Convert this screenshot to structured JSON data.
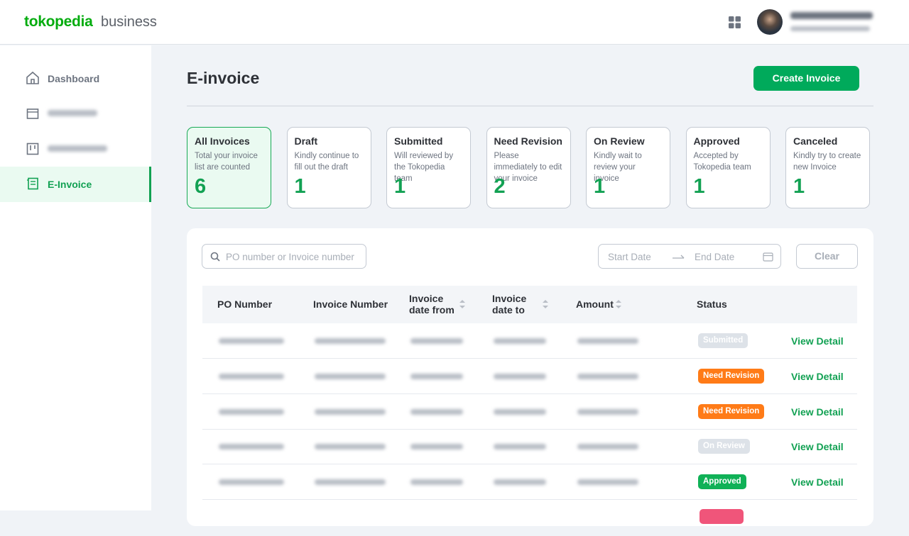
{
  "header": {
    "logo_brand": "tokopedia",
    "logo_suffix": "business"
  },
  "sidebar": {
    "items": [
      {
        "label": "Dashboard"
      },
      {
        "label": "E-Invoice",
        "active": true
      }
    ]
  },
  "page": {
    "title": "E-invoice",
    "create_button": "Create Invoice"
  },
  "cards": [
    {
      "title": "All Invoices",
      "description": "Total your invoice list are counted",
      "count": "6",
      "active": true
    },
    {
      "title": "Draft",
      "description": "Kindly continue to fill out the draft",
      "count": "1"
    },
    {
      "title": "Submitted",
      "description": "Will reviewed by the Tokopedia team",
      "count": "1"
    },
    {
      "title": "Need Revision",
      "description": "Please immediately to edit your invoice",
      "count": "2"
    },
    {
      "title": "On Review",
      "description": "Kindly wait to review your invoice",
      "count": "1"
    },
    {
      "title": "Approved",
      "description": "Accepted by Tokopedia team",
      "count": "1"
    },
    {
      "title": "Canceled",
      "description": "Kindly try to create new Invoice",
      "count": "1"
    }
  ],
  "filters": {
    "search_placeholder": "PO number or Invoice number",
    "start_date": "Start Date",
    "end_date": "End Date",
    "clear": "Clear"
  },
  "table": {
    "columns": [
      "PO Number",
      "Invoice Number",
      "Invoice date from",
      "Invoice date to",
      "Amount",
      "Status"
    ],
    "rows": [
      {
        "status": "Submitted",
        "status_color": "#dde2e8",
        "action": "View Detail"
      },
      {
        "status": "Need Revision",
        "status_color": "#ff7b17",
        "action": "View Detail"
      },
      {
        "status": "Need Revision",
        "status_color": "#ff7b17",
        "action": "View Detail"
      },
      {
        "status": "On Review",
        "status_color": "#dde2e8",
        "action": "View Detail"
      },
      {
        "status": "Approved",
        "status_color": "#10b157",
        "action": "View Detail"
      }
    ]
  }
}
